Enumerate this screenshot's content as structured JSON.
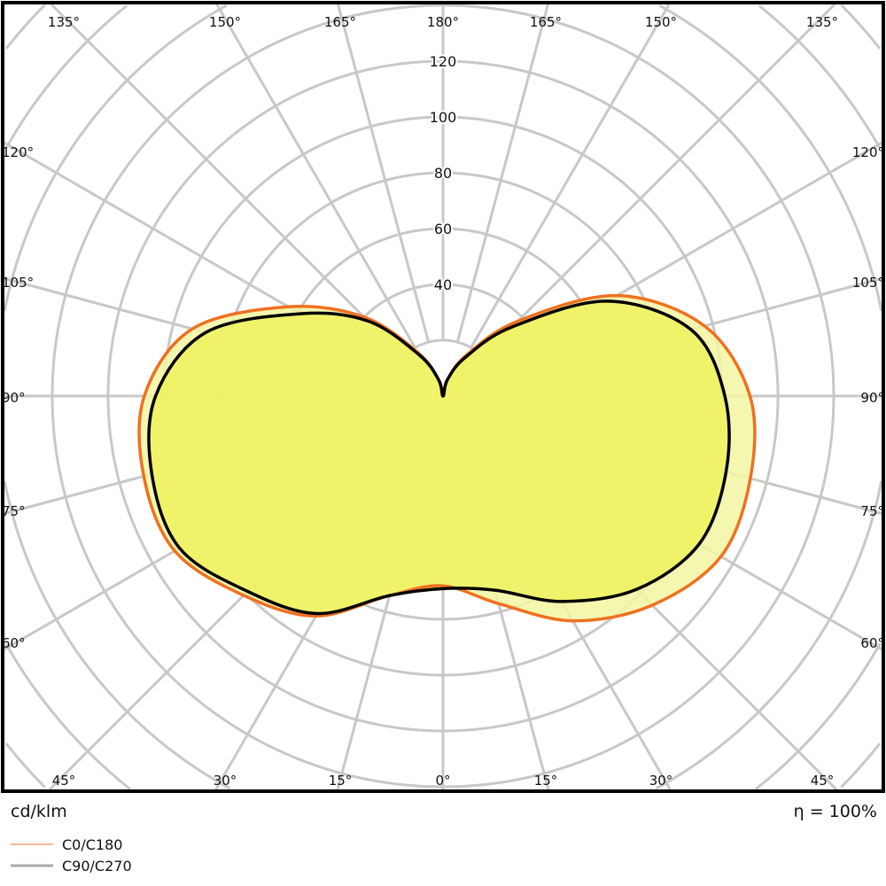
{
  "chart_data": {
    "type": "polar",
    "unit_label": "cd/klm",
    "efficiency_label": "η = 100%",
    "radial_ticks": [
      40,
      60,
      80,
      100,
      120
    ],
    "radial_grid_step": 20,
    "angle_ticks_bottom": [
      "45°",
      "30°",
      "15°",
      "0°",
      "15°",
      "30°",
      "45°"
    ],
    "angle_ticks_top": [
      "135°",
      "150°",
      "165°",
      "180°",
      "165°",
      "150°",
      "135°"
    ],
    "angle_ticks_left": [
      "120°",
      "105°",
      "90°",
      "75°",
      "60°"
    ],
    "angle_ticks_right": [
      "120°",
      "105°",
      "90°",
      "75°",
      "60°"
    ],
    "gamma": [
      0,
      15,
      30,
      45,
      60,
      75,
      90,
      105,
      120,
      135,
      150,
      165,
      180
    ],
    "series": [
      {
        "name": "C0/C180",
        "color": "#f07020",
        "left_half": [
          68,
          74,
          91,
          101,
          111,
          111,
          107,
          93,
          64,
          40,
          18,
          6,
          0
        ],
        "right_half": [
          69,
          77,
          93,
          106,
          115,
          114,
          110,
          97,
          72,
          38,
          17,
          6,
          0
        ]
      },
      {
        "name": "C90/C270",
        "color": "#000000",
        "left_half": [
          69,
          74,
          90,
          99,
          109,
          108,
          103,
          88,
          59,
          38,
          17,
          6,
          0
        ],
        "right_half": [
          69,
          72,
          85,
          98,
          106,
          105,
          101,
          92,
          68,
          35,
          16,
          6,
          0
        ]
      }
    ],
    "fill_colors": {
      "inner": "#eef25e",
      "outer": "#f3f6a2"
    },
    "legend": [
      {
        "label": "C0/C180",
        "color": "#f5a070"
      },
      {
        "label": "C90/C270",
        "color": "#aaaaaa"
      }
    ],
    "grid": true
  }
}
